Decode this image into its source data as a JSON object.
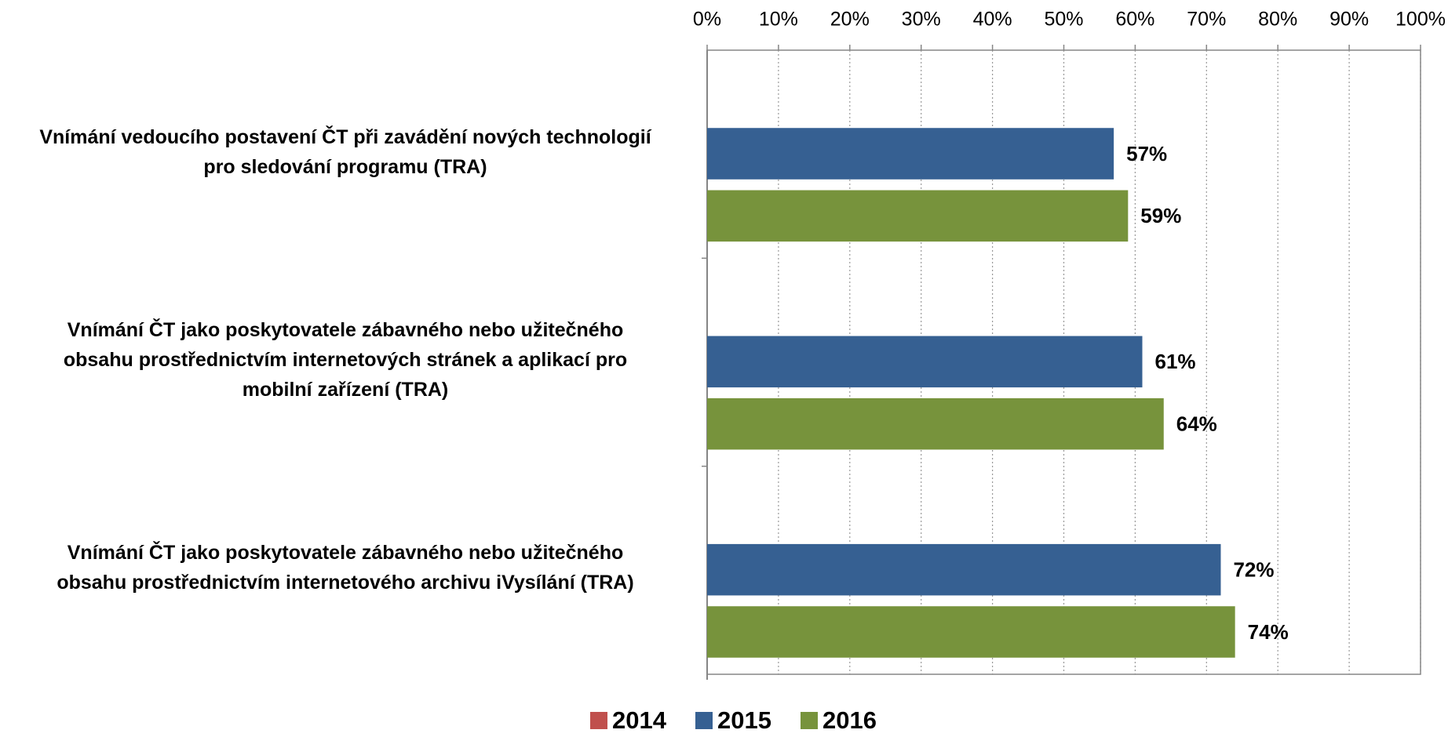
{
  "chart_data": {
    "type": "bar",
    "orientation": "horizontal",
    "categories": [
      "Vnímání vedoucího postavení ČT při zavádění nových technologií\npro sledování programu (TRA)",
      "Vnímání ČT jako poskytovatele zábavného nebo užitečného\nobsahu prostřednictvím internetových stránek a aplikací pro\nmobilní zařízení (TRA)",
      "Vnímání ČT jako poskytovatele zábavného nebo užitečného\nobsahu prostřednictvím internetového archivu iVysílání (TRA)"
    ],
    "series": [
      {
        "name": "2014",
        "color": "#c0504d",
        "values": [
          null,
          null,
          null
        ]
      },
      {
        "name": "2015",
        "color": "#366092",
        "values": [
          57,
          61,
          72
        ],
        "value_labels": [
          "57%",
          "61%",
          "72%"
        ]
      },
      {
        "name": "2016",
        "color": "#77933c",
        "values": [
          59,
          64,
          74
        ],
        "value_labels": [
          "59%",
          "64%",
          "74%"
        ]
      }
    ],
    "xlim": [
      0,
      100
    ],
    "xticks": [
      {
        "value": 0,
        "label": "0%"
      },
      {
        "value": 10,
        "label": "10%"
      },
      {
        "value": 20,
        "label": "20%"
      },
      {
        "value": 30,
        "label": "30%"
      },
      {
        "value": 40,
        "label": "40%"
      },
      {
        "value": 50,
        "label": "50%"
      },
      {
        "value": 60,
        "label": "60%"
      },
      {
        "value": 70,
        "label": "70%"
      },
      {
        "value": 80,
        "label": "80%"
      },
      {
        "value": 90,
        "label": "90%"
      },
      {
        "value": 100,
        "label": "100%"
      }
    ],
    "grid": true,
    "legend": "bottom"
  }
}
